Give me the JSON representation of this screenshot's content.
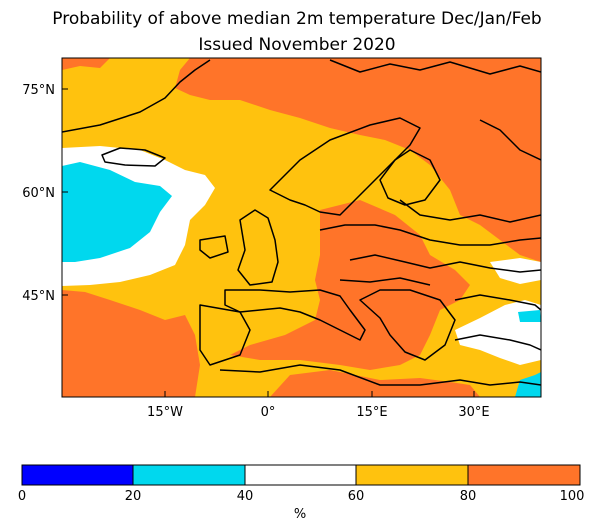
{
  "title": {
    "line1": "Probability of above median 2m temperature Dec/Jan/Feb",
    "line2": "Issued November 2020"
  },
  "map": {
    "lat_ticks": [
      "75°N",
      "60°N",
      "45°N"
    ],
    "lon_ticks": [
      "15°W",
      "0°",
      "15°E",
      "30°E"
    ]
  },
  "colorbar": {
    "ticks": [
      "0",
      "20",
      "40",
      "60",
      "80",
      "100"
    ],
    "unit": "%",
    "bins": [
      {
        "range": "0-20",
        "color": "#0000ff"
      },
      {
        "range": "20-40",
        "color": "#00d8ee"
      },
      {
        "range": "40-60",
        "color": "#ffffff"
      },
      {
        "range": "60-80",
        "color": "#ffc20e"
      },
      {
        "range": "80-100",
        "color": "#ff7429"
      }
    ]
  }
}
